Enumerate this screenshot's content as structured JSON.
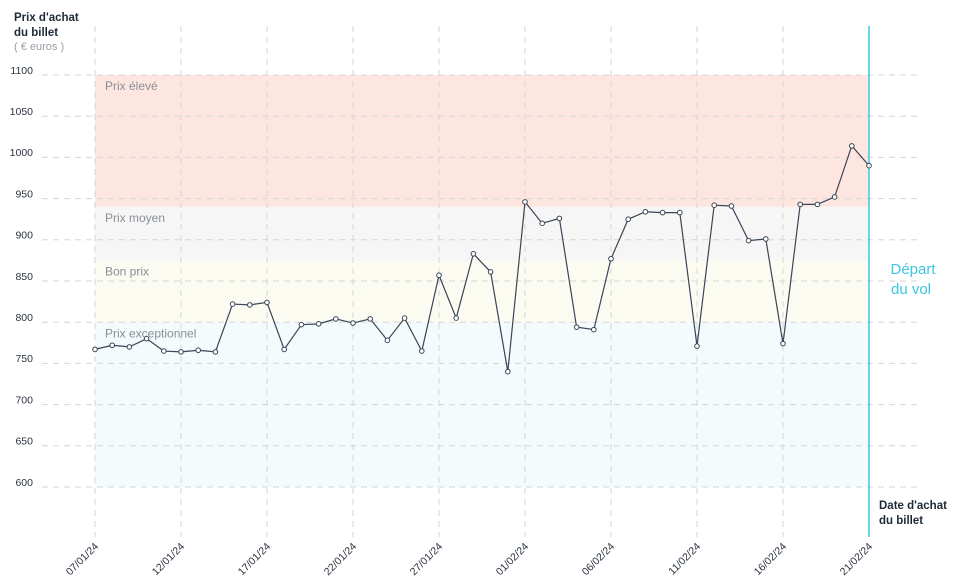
{
  "chart_data": {
    "type": "line",
    "y_label": [
      "Prix d'achat",
      "du billet"
    ],
    "y_unit": "( € euros )",
    "x_label": [
      "Date d'achat",
      "du billet"
    ],
    "annotation": [
      "Départ",
      "du vol"
    ],
    "annotation_color": "#3cc6e0",
    "departure_index": 45,
    "categories": [
      "07/01/24",
      null,
      null,
      null,
      null,
      "12/01/24",
      null,
      null,
      null,
      null,
      "17/01/24",
      null,
      null,
      null,
      null,
      "22/01/24",
      null,
      null,
      null,
      null,
      "27/01/24",
      null,
      null,
      null,
      null,
      "01/02/24",
      null,
      null,
      null,
      null,
      "06/02/24",
      null,
      null,
      null,
      null,
      "11/02/24",
      null,
      null,
      null,
      null,
      "16/02/24",
      null,
      null,
      null,
      null,
      "21/02/24"
    ],
    "series": [
      {
        "name": null,
        "color": "#3a4556",
        "values": [
          767,
          772,
          770,
          780,
          765,
          764,
          766,
          764,
          822,
          821,
          824,
          767,
          797,
          798,
          804,
          799,
          804,
          778,
          805,
          765,
          857,
          805,
          883,
          861,
          740,
          946,
          920,
          926,
          794,
          791,
          877,
          925,
          934,
          933,
          933,
          771,
          942,
          941,
          899,
          901,
          774,
          943,
          943,
          952,
          1014,
          990
        ]
      }
    ],
    "bands": [
      {
        "label": "Prix élevé",
        "from": 940,
        "to": 1100,
        "color": "#fde6e0"
      },
      {
        "label": "Prix moyen",
        "from": 875,
        "to": 940,
        "color": "#f6f6f6"
      },
      {
        "label": "Bon prix",
        "from": 800,
        "to": 875,
        "color": "#fbfbf1"
      },
      {
        "label": "Prix exceptionnel",
        "from": 600,
        "to": 800,
        "color": "#f3fbfd"
      }
    ],
    "ylim": [
      600,
      1100
    ],
    "yticks": [
      600,
      650,
      700,
      750,
      800,
      850,
      900,
      950,
      1000,
      1050,
      1100
    ],
    "grid": true
  }
}
